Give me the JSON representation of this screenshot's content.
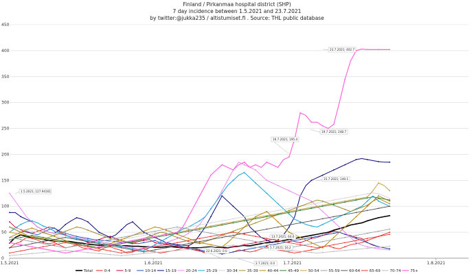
{
  "chart_data": {
    "type": "line",
    "title": "Finland / Pirkanmaa hospital district (SHP)",
    "subtitle": "7 day incidence between 1.5.2021 and 23.7.2021",
    "credit": "by twitter:@jukka235 / altistumiset.fi . Source: THL public database",
    "ylim": [
      0,
      450
    ],
    "y_ticks": [
      "0",
      "50",
      "100",
      "150",
      "200",
      "250",
      "300",
      "350",
      "400",
      "450"
    ],
    "x_ticks": [
      "1.5.2021",
      "1.6.2021",
      "1.7.2021",
      "1.8.2021"
    ],
    "legend_position": "bottom",
    "grid": true,
    "series": [
      {
        "name": "Total",
        "color": "#000000",
        "width": 1.6,
        "values": [
          29,
          40,
          45,
          42,
          40,
          38,
          36,
          34,
          33,
          32,
          33,
          32,
          30,
          29,
          27,
          26,
          25,
          25,
          26,
          25,
          24,
          24,
          23,
          23,
          22,
          22,
          21,
          21,
          22,
          22,
          21,
          21,
          20,
          20,
          20,
          21,
          22,
          21,
          21,
          20,
          22,
          23,
          24,
          24,
          26,
          28,
          30,
          31,
          32,
          34,
          36,
          38,
          40,
          42,
          44,
          46,
          48,
          50,
          54,
          57,
          60,
          64,
          66,
          68,
          72,
          75,
          78,
          80,
          82
        ]
      },
      {
        "name": "0-4",
        "color": "#e8231c",
        "width": 0.9,
        "values": [
          20,
          28,
          32,
          40,
          38,
          35,
          30,
          28,
          30,
          25,
          20,
          22,
          26,
          20,
          18,
          16,
          14,
          20,
          22,
          18,
          15,
          10,
          12,
          16,
          18,
          14,
          12,
          10,
          12,
          14,
          16,
          20,
          22,
          18,
          14,
          10,
          12,
          14,
          8,
          10,
          12,
          16,
          14,
          12,
          14,
          18,
          22,
          18,
          16,
          14,
          12,
          10,
          12,
          14,
          16,
          18,
          22,
          24,
          20,
          18,
          22,
          26,
          28,
          30,
          34,
          38,
          42,
          46,
          50
        ]
      },
      {
        "name": "5-9",
        "color": "#c0003a",
        "width": 0.9,
        "values": [
          70,
          60,
          55,
          50,
          48,
          52,
          55,
          60,
          58,
          50,
          45,
          40,
          38,
          35,
          30,
          32,
          36,
          40,
          42,
          38,
          34,
          30,
          28,
          32,
          34,
          36,
          30,
          28,
          26,
          24,
          22,
          20,
          18,
          16,
          14,
          12,
          10,
          14,
          18,
          20,
          22,
          24,
          26,
          28,
          30,
          32,
          34,
          36,
          38,
          40,
          36,
          32,
          30,
          34,
          38,
          40,
          44,
          48,
          52,
          50,
          46,
          44,
          40,
          38,
          30,
          25,
          22,
          20,
          18
        ]
      },
      {
        "name": "10-14",
        "color": "#1c4fb5",
        "width": 0.9,
        "values": [
          60,
          55,
          50,
          52,
          48,
          45,
          50,
          55,
          58,
          52,
          48,
          45,
          42,
          40,
          38,
          36,
          35,
          34,
          33,
          32,
          31,
          30,
          29,
          28,
          30,
          32,
          34,
          30,
          28,
          26,
          24,
          22,
          20,
          18,
          16,
          14,
          12,
          10,
          8,
          10,
          12,
          14,
          16,
          18,
          20,
          22,
          24,
          26,
          28,
          30,
          32,
          34,
          36,
          38,
          40,
          42,
          44,
          46,
          48,
          50,
          46,
          42,
          38,
          34,
          30,
          26,
          22,
          20,
          18
        ]
      },
      {
        "name": "15-19",
        "color": "#08087a",
        "width": 1.0,
        "values": [
          88,
          88,
          80,
          75,
          70,
          60,
          55,
          50,
          48,
          55,
          65,
          72,
          78,
          75,
          70,
          60,
          50,
          45,
          40,
          45,
          55,
          65,
          70,
          60,
          50,
          45,
          40,
          35,
          30,
          28,
          26,
          25,
          24,
          30,
          45,
          60,
          80,
          100,
          120,
          110,
          100,
          90,
          80,
          60,
          50,
          40,
          35,
          30,
          35,
          45,
          60,
          80,
          120,
          140,
          150,
          155,
          160,
          165,
          170,
          175,
          180,
          185,
          190,
          192,
          190,
          188,
          186,
          185,
          185
        ]
      },
      {
        "name": "20-24",
        "color": "#ee88ee",
        "width": 1.0,
        "values": [
          125,
          110,
          95,
          80,
          70,
          60,
          55,
          50,
          48,
          46,
          44,
          42,
          40,
          38,
          36,
          34,
          32,
          30,
          28,
          26,
          24,
          22,
          20,
          18,
          20,
          22,
          24,
          26,
          30,
          34,
          38,
          42,
          48,
          55,
          65,
          80,
          95,
          110,
          130,
          150,
          170,
          185,
          180,
          175,
          170,
          160,
          150,
          145,
          140,
          135,
          130,
          125,
          120,
          115,
          110,
          100,
          90,
          80,
          70,
          60,
          50,
          40,
          30,
          25,
          22,
          20,
          18,
          17,
          16
        ]
      },
      {
        "name": "25-29",
        "color": "#1aa3d6",
        "width": 1.0,
        "values": [
          50,
          58,
          65,
          70,
          72,
          68,
          62,
          58,
          52,
          48,
          44,
          40,
          38,
          36,
          34,
          32,
          30,
          28,
          26,
          24,
          22,
          20,
          18,
          16,
          14,
          20,
          26,
          32,
          38,
          44,
          50,
          56,
          60,
          66,
          72,
          80,
          95,
          110,
          125,
          140,
          150,
          160,
          165,
          155,
          145,
          135,
          125,
          115,
          105,
          95,
          85,
          75,
          70,
          65,
          62,
          60,
          65,
          70,
          75,
          80,
          85,
          90,
          95,
          100,
          110,
          120,
          110,
          105,
          100
        ]
      },
      {
        "name": "30-34",
        "color": "#d4d4d4",
        "width": 0.9,
        "values": [
          60,
          58,
          56,
          54,
          52,
          50,
          48,
          46,
          44,
          42,
          40,
          38,
          36,
          34,
          32,
          30,
          28,
          30,
          32,
          34,
          36,
          38,
          40,
          42,
          44,
          46,
          48,
          50,
          52,
          54,
          56,
          58,
          60,
          62,
          64,
          66,
          68,
          70,
          72,
          74,
          76,
          78,
          80,
          82,
          84,
          86,
          88,
          90,
          92,
          94,
          96,
          98,
          100,
          102,
          104,
          106,
          108,
          110,
          112,
          114,
          116,
          118,
          120,
          122,
          124,
          126,
          124,
          120,
          115
        ]
      },
      {
        "name": "35-39",
        "color": "#a08c30",
        "width": 1.0,
        "values": [
          60,
          55,
          50,
          45,
          40,
          38,
          36,
          40,
          44,
          48,
          52,
          56,
          60,
          58,
          54,
          50,
          46,
          42,
          38,
          36,
          34,
          32,
          30,
          34,
          38,
          42,
          46,
          50,
          48,
          44,
          40,
          36,
          32,
          30,
          28,
          32,
          36,
          40,
          44,
          48,
          52,
          56,
          60,
          64,
          68,
          72,
          76,
          80,
          84,
          88,
          92,
          96,
          100,
          104,
          108,
          112,
          110,
          106,
          102,
          98,
          94,
          90,
          94,
          98,
          102,
          110,
          120,
          115,
          110
        ]
      },
      {
        "name": "40-44",
        "color": "#b8860b",
        "width": 1.0,
        "values": [
          40,
          45,
          50,
          55,
          58,
          54,
          50,
          46,
          42,
          38,
          34,
          30,
          28,
          26,
          24,
          22,
          20,
          24,
          28,
          32,
          36,
          40,
          44,
          48,
          52,
          56,
          60,
          58,
          54,
          50,
          46,
          42,
          38,
          34,
          30,
          28,
          26,
          24,
          22,
          30,
          40,
          50,
          60,
          70,
          80,
          85,
          90,
          80,
          70,
          60,
          50,
          45,
          40,
          35,
          30,
          25,
          20,
          30,
          40,
          50,
          60,
          70,
          80,
          90,
          100,
          110,
          115,
          110,
          105
        ]
      },
      {
        "name": "45-49",
        "color": "#2e7d32",
        "width": 0.9,
        "values": [
          35,
          38,
          40,
          42,
          44,
          42,
          40,
          38,
          36,
          34,
          32,
          30,
          28,
          26,
          24,
          22,
          20,
          22,
          24,
          26,
          28,
          30,
          32,
          34,
          36,
          38,
          40,
          42,
          44,
          46,
          48,
          50,
          52,
          54,
          56,
          58,
          60,
          62,
          64,
          66,
          68,
          70,
          72,
          74,
          76,
          78,
          80,
          82,
          84,
          86,
          88,
          90,
          92,
          94,
          96,
          98,
          100,
          102,
          104,
          106,
          108,
          110,
          112,
          114,
          116,
          118,
          116,
          114,
          112
        ]
      },
      {
        "name": "50-54",
        "color": "#c8a040",
        "width": 1.0,
        "values": [
          50,
          48,
          46,
          44,
          42,
          40,
          38,
          36,
          34,
          32,
          30,
          28,
          26,
          24,
          22,
          20,
          22,
          24,
          26,
          28,
          30,
          32,
          34,
          36,
          38,
          40,
          42,
          44,
          46,
          48,
          50,
          52,
          54,
          56,
          58,
          60,
          62,
          64,
          66,
          68,
          70,
          72,
          74,
          76,
          78,
          80,
          82,
          84,
          86,
          88,
          90,
          92,
          94,
          96,
          98,
          100,
          102,
          104,
          106,
          108,
          110,
          112,
          114,
          116,
          118,
          130,
          145,
          140,
          130
        ]
      },
      {
        "name": "55-59",
        "color": "#9aa0a6",
        "width": 0.9,
        "values": [
          40,
          38,
          36,
          34,
          32,
          30,
          28,
          26,
          24,
          22,
          20,
          22,
          24,
          26,
          28,
          30,
          32,
          34,
          36,
          38,
          40,
          42,
          44,
          46,
          48,
          50,
          52,
          54,
          56,
          58,
          60,
          58,
          56,
          54,
          52,
          50,
          48,
          46,
          44,
          42,
          40,
          38,
          36,
          34,
          32,
          30,
          28,
          26,
          24,
          22,
          20,
          22,
          24,
          26,
          28,
          30,
          32,
          34,
          36,
          38,
          40,
          42,
          44,
          46,
          48,
          50,
          52,
          54,
          56
        ]
      },
      {
        "name": "60-64",
        "color": "#555555",
        "width": 0.9,
        "values": [
          20,
          22,
          24,
          26,
          28,
          30,
          32,
          34,
          36,
          38,
          40,
          38,
          36,
          34,
          32,
          30,
          28,
          26,
          24,
          22,
          20,
          18,
          16,
          14,
          12,
          14,
          16,
          18,
          20,
          22,
          24,
          26,
          28,
          30,
          32,
          34,
          36,
          38,
          40,
          42,
          44,
          46,
          48,
          50,
          52,
          54,
          56,
          58,
          60,
          62,
          64,
          66,
          68,
          70,
          72,
          74,
          76,
          78,
          80,
          82,
          84,
          86,
          88,
          90,
          92,
          94,
          96,
          98,
          100
        ]
      },
      {
        "name": "65-69",
        "color": "#e53935",
        "width": 0.9,
        "values": [
          10,
          12,
          14,
          16,
          18,
          20,
          22,
          24,
          26,
          28,
          30,
          28,
          26,
          24,
          22,
          20,
          18,
          16,
          14,
          12,
          10,
          12,
          14,
          16,
          18,
          20,
          22,
          24,
          26,
          28,
          30,
          32,
          34,
          36,
          38,
          40,
          42,
          44,
          46,
          48,
          50,
          48,
          46,
          44,
          42,
          40,
          38,
          36,
          34,
          32,
          30,
          28,
          26,
          24,
          22,
          20,
          22,
          24,
          26,
          28,
          30,
          32,
          34,
          36,
          38,
          40,
          42,
          44,
          46
        ]
      },
      {
        "name": "70-74",
        "color": "#bdbdbd",
        "width": 0.9,
        "values": [
          5,
          6,
          7,
          8,
          9,
          10,
          11,
          12,
          13,
          14,
          15,
          14,
          13,
          12,
          11,
          10,
          9,
          8,
          7,
          6,
          5,
          6,
          7,
          8,
          9,
          10,
          11,
          12,
          13,
          14,
          15,
          16,
          17,
          18,
          19,
          20,
          21,
          22,
          23,
          24,
          25,
          24,
          23,
          22,
          21,
          20,
          19,
          18,
          17,
          16,
          15,
          14,
          13,
          12,
          11,
          10,
          11,
          12,
          13,
          14,
          15,
          16,
          17,
          18,
          19,
          20,
          21,
          22,
          23
        ]
      },
      {
        "name": "75+",
        "color": "#ff66dd",
        "width": 1.2,
        "values": [
          30,
          28,
          26,
          24,
          22,
          20,
          18,
          16,
          14,
          12,
          10,
          12,
          14,
          16,
          18,
          20,
          22,
          24,
          26,
          28,
          30,
          32,
          34,
          36,
          38,
          40,
          42,
          44,
          46,
          48,
          50,
          60,
          80,
          100,
          120,
          140,
          160,
          170,
          180,
          175,
          170,
          180,
          185,
          175,
          180,
          175,
          185,
          180,
          175,
          190,
          195,
          230,
          280,
          275,
          262,
          262,
          255,
          250,
          258,
          300,
          345,
          380,
          400,
          403,
          402,
          402,
          402,
          402,
          402
        ]
      }
    ],
    "annotations": [
      "1.5.2021; 127.94161",
      "23.7.2021; 402.7",
      "19.7.2021; 248.7",
      "16.7.2021; 195.4",
      "15.7.2021; 149.1",
      "13.7.2021; 64.0",
      "5.7.2021; 16.2",
      "22.6.2021; 0.0",
      "2.7.2021; 0.0"
    ]
  }
}
